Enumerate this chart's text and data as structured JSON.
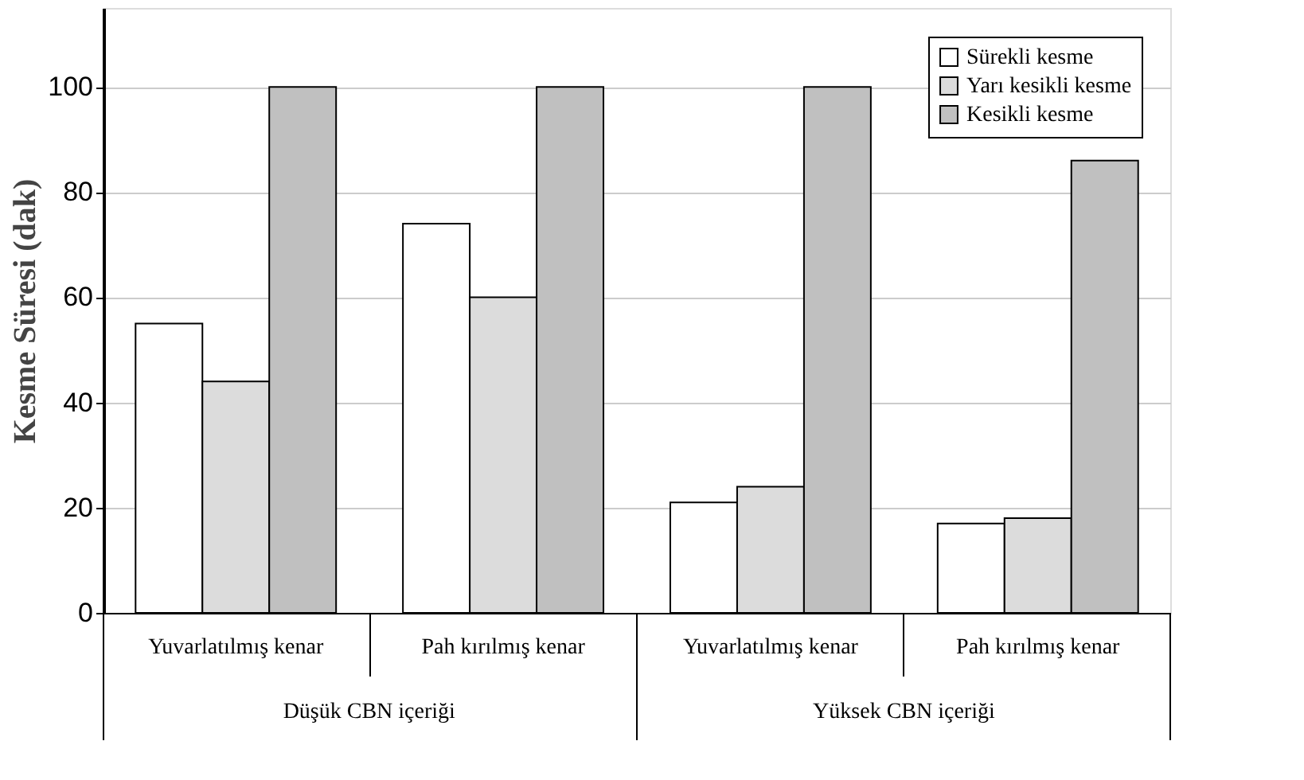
{
  "chart_data": {
    "type": "bar",
    "ylabel": "Kesme Süresi (dak)",
    "categories": [
      "Yuvarlatılmış kenar",
      "Pah kırılmış kenar",
      "Yuvarlatılmış kenar",
      "Pah kırılmış kenar"
    ],
    "series": [
      {
        "name": "Sürekli kesme",
        "color": "#ffffff",
        "values": [
          55,
          74,
          21,
          17
        ]
      },
      {
        "name": "Yarı kesikli kesme",
        "color": "#dcdcdc",
        "values": [
          44,
          60,
          24,
          18
        ]
      },
      {
        "name": "Kesikli kesme",
        "color": "#c0c0c0",
        "values": [
          100,
          100,
          100,
          86
        ]
      }
    ],
    "annotations": [
      "Düşük CBN içeriği",
      "Yüksek CBN içeriği"
    ],
    "ylim": [
      0,
      115
    ],
    "yticks": [
      0,
      20,
      40,
      60,
      80,
      100
    ],
    "grid": "y",
    "legend": "top right"
  }
}
